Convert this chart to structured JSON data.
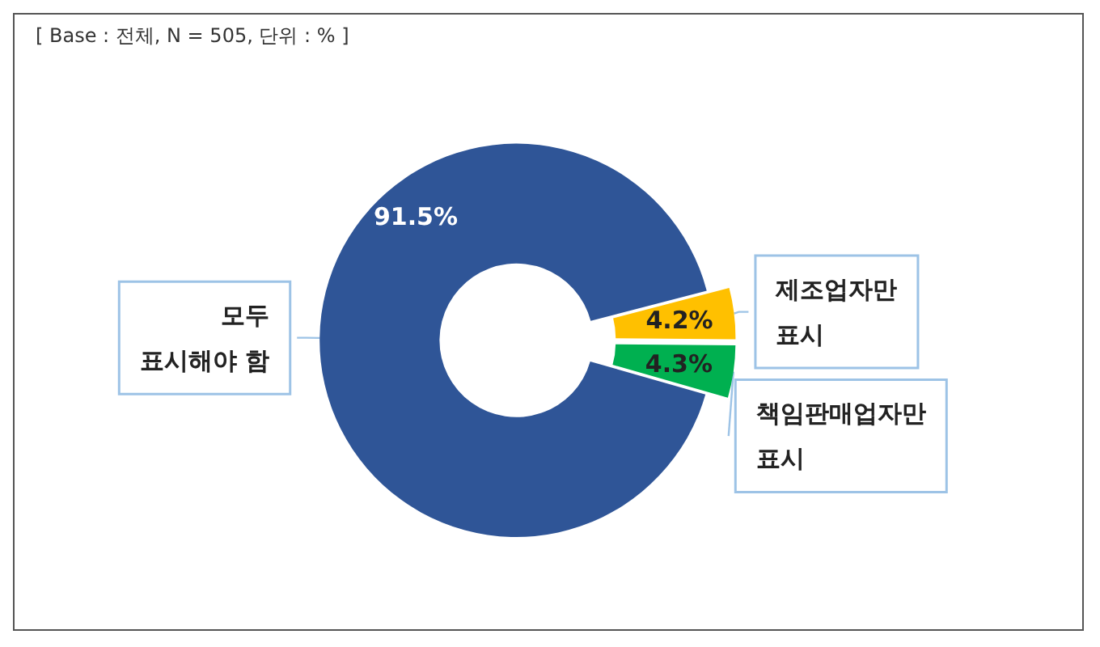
{
  "chart_data": {
    "type": "donut",
    "title": "[ Base : 전체, N = 505, 단위 : % ]",
    "categories": [
      "모두\n표시해야 함",
      "제조업자만\n표시",
      "책임판매업자만\n표시"
    ],
    "values": [
      91.5,
      4.2,
      4.3
    ],
    "value_labels": [
      "91.5%",
      "4.2%",
      "4.3%"
    ],
    "colors": [
      "#2f5597",
      "#ffc000",
      "#00b050"
    ]
  }
}
